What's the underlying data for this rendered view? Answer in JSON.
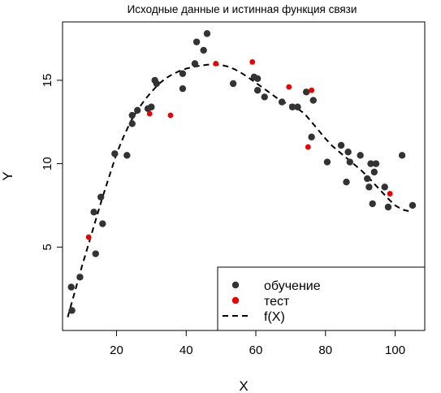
{
  "chart_data": {
    "type": "scatter",
    "title": "Исходные данные и истинная функция связи",
    "xlabel": "X",
    "ylabel": "Y",
    "xlim": [
      4.5,
      108.5
    ],
    "ylim": [
      0.0,
      18.5
    ],
    "x_ticks": [
      20,
      40,
      60,
      80,
      100
    ],
    "y_ticks": [
      5,
      10,
      15
    ],
    "grid": false,
    "legend_position": "bottom-right",
    "series": [
      {
        "name": "обучение",
        "color": "#333333",
        "marker": "filled-circle",
        "points": [
          [
            7,
            2.6
          ],
          [
            7.2,
            1.2
          ],
          [
            9.5,
            3.2
          ],
          [
            13.5,
            7.1
          ],
          [
            14,
            4.6
          ],
          [
            15.5,
            8.0
          ],
          [
            16,
            6.4
          ],
          [
            19.5,
            10.6
          ],
          [
            23,
            10.5
          ],
          [
            24.5,
            12.9
          ],
          [
            24.5,
            12.4
          ],
          [
            26,
            13.2
          ],
          [
            29,
            13.3
          ],
          [
            30,
            13.4
          ],
          [
            31,
            15.0
          ],
          [
            31.5,
            14.8
          ],
          [
            39,
            15.4
          ],
          [
            39,
            14.5
          ],
          [
            42.5,
            16.0
          ],
          [
            43,
            17.3
          ],
          [
            45,
            16.8
          ],
          [
            46,
            17.8
          ],
          [
            53.5,
            14.8
          ],
          [
            59.5,
            15.2
          ],
          [
            60.5,
            15.1
          ],
          [
            60.5,
            14.4
          ],
          [
            62.5,
            14.0
          ],
          [
            67.5,
            13.7
          ],
          [
            70.5,
            13.4
          ],
          [
            72,
            13.4
          ],
          [
            74.5,
            14.3
          ],
          [
            76,
            11.6
          ],
          [
            76.5,
            13.8
          ],
          [
            80.5,
            10.1
          ],
          [
            84.5,
            11.1
          ],
          [
            86,
            8.9
          ],
          [
            86.5,
            10.7
          ],
          [
            87,
            10.1
          ],
          [
            90,
            10.5
          ],
          [
            92,
            9.1
          ],
          [
            92.5,
            8.6
          ],
          [
            93,
            10.0
          ],
          [
            93.5,
            7.6
          ],
          [
            94,
            9.5
          ],
          [
            94.5,
            10.0
          ],
          [
            97,
            8.6
          ],
          [
            98,
            7.4
          ],
          [
            102,
            10.5
          ],
          [
            105,
            7.5
          ]
        ]
      },
      {
        "name": "тест",
        "color": "#ee0000",
        "marker": "filled-circle",
        "points": [
          [
            12,
            5.6
          ],
          [
            29.5,
            13.0
          ],
          [
            35.5,
            12.9
          ],
          [
            48.5,
            16.0
          ],
          [
            59,
            16.1
          ],
          [
            69.5,
            14.6
          ],
          [
            75,
            11.0
          ],
          [
            76,
            14.4
          ],
          [
            98.5,
            8.2
          ]
        ]
      },
      {
        "name": "f(X)",
        "color": "#000000",
        "marker": "dashed-line",
        "points": [
          [
            6,
            0.8
          ],
          [
            8,
            2.3
          ],
          [
            10,
            3.8
          ],
          [
            12,
            5.2
          ],
          [
            14,
            6.6
          ],
          [
            16,
            8.0
          ],
          [
            18,
            9.3
          ],
          [
            20,
            10.6
          ],
          [
            22,
            11.6
          ],
          [
            24,
            12.5
          ],
          [
            26,
            13.2
          ],
          [
            28,
            13.8
          ],
          [
            30,
            14.3
          ],
          [
            32,
            14.75
          ],
          [
            34,
            15.1
          ],
          [
            36,
            15.35
          ],
          [
            38,
            15.55
          ],
          [
            40,
            15.7
          ],
          [
            42,
            15.8
          ],
          [
            44,
            15.88
          ],
          [
            46,
            15.93
          ],
          [
            48,
            15.95
          ],
          [
            50,
            15.92
          ],
          [
            52,
            15.82
          ],
          [
            54,
            15.65
          ],
          [
            56,
            15.42
          ],
          [
            58,
            15.15
          ],
          [
            60,
            14.85
          ],
          [
            62,
            14.55
          ],
          [
            64,
            14.25
          ],
          [
            66,
            13.95
          ],
          [
            68,
            13.7
          ],
          [
            70,
            13.5
          ],
          [
            72,
            13.3
          ],
          [
            74,
            13.0
          ],
          [
            76,
            12.5
          ],
          [
            78,
            12.0
          ],
          [
            80,
            11.5
          ],
          [
            82,
            11.05
          ],
          [
            84,
            10.7
          ],
          [
            86,
            10.35
          ],
          [
            88,
            10.0
          ],
          [
            90,
            9.65
          ],
          [
            92,
            9.25
          ],
          [
            94,
            8.8
          ],
          [
            96,
            8.35
          ],
          [
            98,
            7.9
          ],
          [
            100,
            7.5
          ],
          [
            102,
            7.25
          ],
          [
            104,
            7.15
          ],
          [
            105,
            7.2
          ]
        ]
      }
    ]
  }
}
